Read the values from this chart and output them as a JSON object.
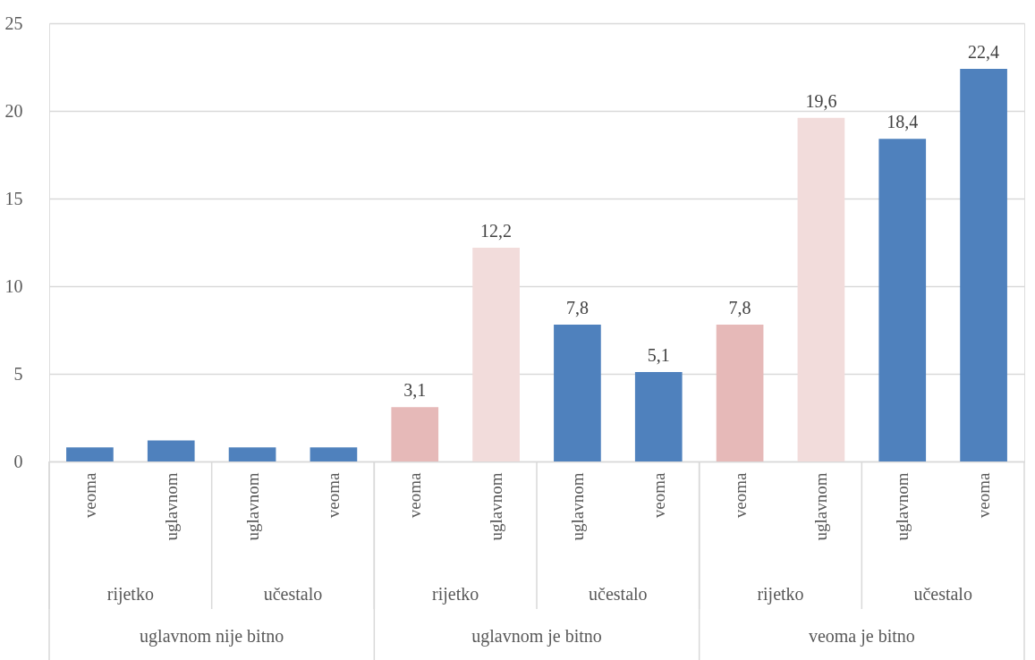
{
  "chart_data": {
    "type": "bar",
    "categories": [
      "veoma",
      "uglavnom",
      "uglavnom",
      "veoma",
      "veoma",
      "uglavnom",
      "uglavnom",
      "veoma",
      "veoma",
      "uglavnom",
      "uglavnom",
      "veoma"
    ],
    "values": [
      0.8,
      1.2,
      0.8,
      0.8,
      3.1,
      12.2,
      7.8,
      5.1,
      7.8,
      19.6,
      18.4,
      22.4
    ],
    "colors": [
      "#4f81bd",
      "#4f81bd",
      "#4f81bd",
      "#4f81bd",
      "#e6b9b8",
      "#f2dcdb",
      "#4f81bd",
      "#4f81bd",
      "#e6b9b8",
      "#f2dcdb",
      "#4f81bd",
      "#4f81bd"
    ],
    "value_labels": [
      null,
      null,
      null,
      null,
      "3,1",
      "12,2",
      "7,8",
      "5,1",
      "7,8",
      "19,6",
      "18,4",
      "22,4"
    ],
    "annotations": [
      "rijetko",
      "učestalo",
      "rijetko",
      "učestalo",
      "rijetko",
      "učestalo",
      "uglavnom nije bitno",
      "uglavnom je bitno",
      "veoma je bitno"
    ],
    "ylim": [
      0,
      25
    ],
    "yticks": [
      0,
      5,
      10,
      15,
      20,
      25
    ],
    "grid": "y"
  }
}
